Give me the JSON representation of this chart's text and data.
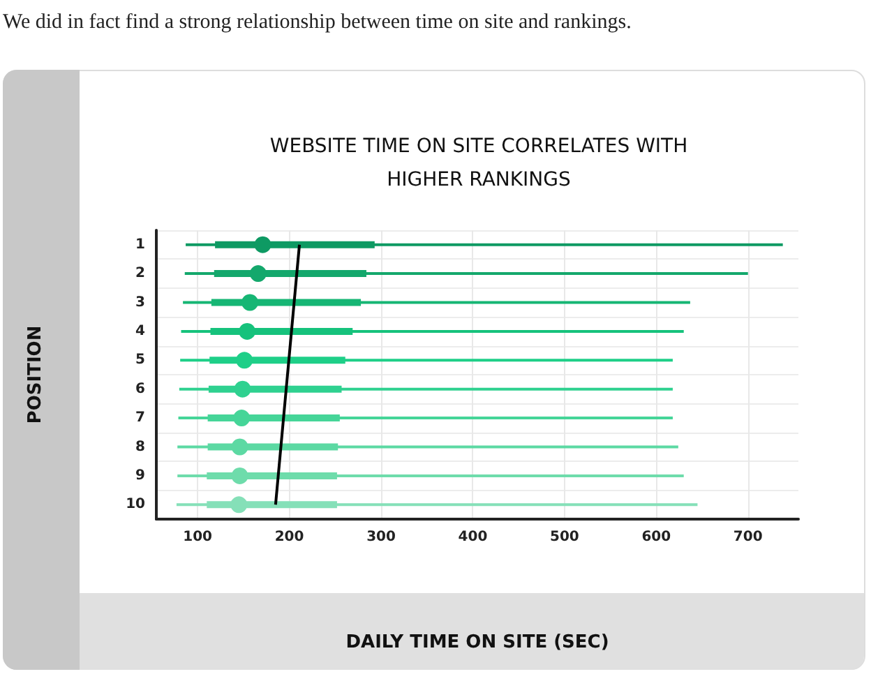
{
  "chart_data": {
    "type": "box",
    "orientation": "horizontal",
    "title": "WEBSITE TIME ON SITE CORRELATES WITH\nHIGHER RANKINGS",
    "xlabel": "DAILY TIME ON SITE (SEC)",
    "ylabel": "POSITION",
    "annotations": [
      "We did in fact find a strong relationship between time on site and rankings."
    ],
    "categories": [
      "1",
      "2",
      "3",
      "4",
      "5",
      "6",
      "7",
      "8",
      "9",
      "10"
    ],
    "colors": [
      "#0e9a63",
      "#14a86c",
      "#16b674",
      "#16c27c",
      "#1ecf88",
      "#2fd190",
      "#45d598",
      "#5cd9a3",
      "#6edcab",
      "#85e0b8"
    ],
    "boxes": [
      {
        "low": 87,
        "q1": 119,
        "median": 171,
        "q3": 293,
        "high": 738
      },
      {
        "low": 86,
        "q1": 118,
        "median": 166,
        "q3": 284,
        "high": 700
      },
      {
        "low": 84,
        "q1": 115,
        "median": 157,
        "q3": 278,
        "high": 637
      },
      {
        "low": 82,
        "q1": 114,
        "median": 154,
        "q3": 269,
        "high": 630
      },
      {
        "low": 81,
        "q1": 113,
        "median": 151,
        "q3": 261,
        "high": 618
      },
      {
        "low": 80,
        "q1": 112,
        "median": 149,
        "q3": 257,
        "high": 618
      },
      {
        "low": 79,
        "q1": 111,
        "median": 148,
        "q3": 255,
        "high": 618
      },
      {
        "low": 78,
        "q1": 111,
        "median": 146,
        "q3": 253,
        "high": 624
      },
      {
        "low": 78,
        "q1": 110,
        "median": 146,
        "q3": 252,
        "high": 630
      },
      {
        "low": 77,
        "q1": 110,
        "median": 145,
        "q3": 252,
        "high": 645
      }
    ],
    "series": [
      {
        "type": "line",
        "x": [
          "1",
          "10"
        ],
        "values": [
          211,
          185
        ],
        "color": "#000000"
      }
    ],
    "xlim": [
      55,
      755
    ],
    "xticks": [
      100,
      200,
      300,
      400,
      500,
      600,
      700
    ],
    "grid": true
  }
}
